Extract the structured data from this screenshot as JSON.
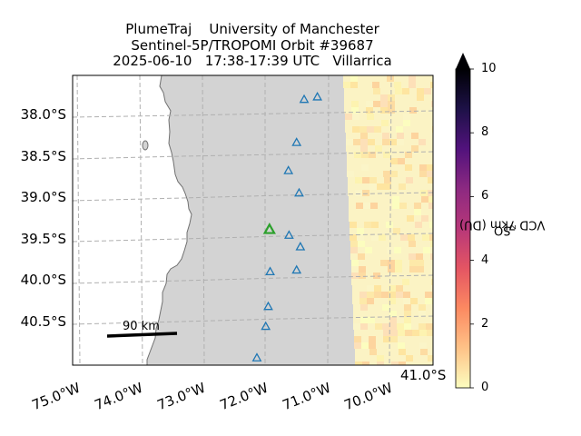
{
  "title": {
    "line1": "PlumeTraj    University of Manchester",
    "line2": "Sentinel-5P/TROPOMI Orbit #39687",
    "line3": "2025-06-10   17:38-17:39 UTC   Villarrica"
  },
  "map": {
    "lat_labels": [
      "38.0°S",
      "38.5°S",
      "39.0°S",
      "39.5°S",
      "40.0°S",
      "40.5°S"
    ],
    "extra_lat_label": "41.0°S",
    "lon_labels": [
      "75.0°W",
      "74.0°W",
      "73.0°W",
      "72.0°W",
      "71.0°W",
      "70.0°W"
    ],
    "scalebar_label": "90 km",
    "land_color": "#d3d3d3",
    "ocean_color": "#ffffff",
    "gridline_color": "#b0b0b0",
    "volcano_marker_color": "#1f77b4",
    "target_volcano_color": "#2ca02c",
    "volcanoes": [
      {
        "lon": -71.38,
        "lat": -37.85
      },
      {
        "lon": -71.17,
        "lat": -37.82
      },
      {
        "lon": -71.5,
        "lat": -38.37
      },
      {
        "lon": -71.63,
        "lat": -38.71
      },
      {
        "lon": -71.46,
        "lat": -38.98
      },
      {
        "lon": -71.62,
        "lat": -39.49
      },
      {
        "lon": -71.44,
        "lat": -39.63
      },
      {
        "lon": -71.92,
        "lat": -39.93
      },
      {
        "lon": -71.5,
        "lat": -39.91
      },
      {
        "lon": -71.95,
        "lat": -40.35
      },
      {
        "lon": -71.99,
        "lat": -40.59
      },
      {
        "lon": -72.13,
        "lat": -40.97
      }
    ],
    "target_volcano": {
      "name": "Villarrica",
      "lon": -71.93,
      "lat": -39.42
    }
  },
  "colorbar": {
    "label_prefix": "SO",
    "label_sub": "2",
    "label_suffix": " VCD 7km (DU)",
    "ticks": [
      "0",
      "2",
      "4",
      "6",
      "8",
      "10"
    ],
    "min": 0,
    "max": 10,
    "extend": "max",
    "cmap": [
      "#fcfdbf",
      "#fec287",
      "#fc8961",
      "#e45563",
      "#b73779",
      "#8c2981",
      "#51127c",
      "#1d1147",
      "#000004"
    ]
  }
}
